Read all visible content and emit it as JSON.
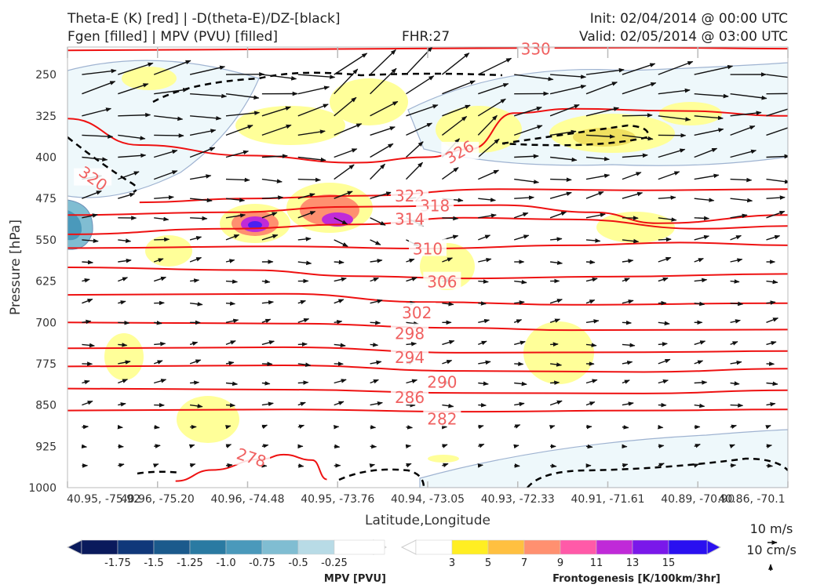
{
  "header": {
    "title_left_1": "Theta-E (K) [red] | -D(theta-E)/DZ-[black]",
    "title_left_2": "Fgen [filled] | MPV (PVU) [filled]",
    "fhr": "FHR:27",
    "init": "Init: 02/04/2014 @ 00:00 UTC",
    "valid": "Valid: 02/05/2014 @ 03:00 UTC"
  },
  "colors": {
    "theta_e": "#ee1111",
    "theta_e_label": "#f06060",
    "mpv_scale": [
      "#0a1a5c",
      "#10387a",
      "#1b5a8c",
      "#2a7aa2",
      "#4a99bb",
      "#80bdd2",
      "#b8dbe6",
      "#ffffff"
    ],
    "fgen_scale": [
      "#ffffff",
      "#ffee22",
      "#ffc040",
      "#ff9070",
      "#ff5aa8",
      "#c02ad8",
      "#7a18ea",
      "#2a10f0"
    ]
  },
  "chart_data": {
    "type": "cross-section",
    "xlabel": "Latitude,Longitude",
    "ylabel": "Pressure [hPa]",
    "x_ticks": [
      "40.95, -75.92",
      "40.96, -75.20",
      "40.96, -74.48",
      "40.95, -73.76",
      "40.94, -73.05",
      "40.93, -72.33",
      "40.91, -71.61",
      "40.89, -70.90",
      "40.86, -70.1"
    ],
    "y_ticks": [
      250,
      325,
      400,
      475,
      550,
      625,
      700,
      775,
      850,
      925,
      1000
    ],
    "ylim": [
      1000,
      200
    ],
    "theta_e_labels": [
      {
        "value": "330",
        "x": 0.65,
        "p": 205
      },
      {
        "value": "326",
        "x": 0.545,
        "p": 392
      },
      {
        "value": "322",
        "x": 0.475,
        "p": 472
      },
      {
        "value": "318",
        "x": 0.51,
        "p": 490
      },
      {
        "value": "314",
        "x": 0.475,
        "p": 514
      },
      {
        "value": "310",
        "x": 0.5,
        "p": 568
      },
      {
        "value": "306",
        "x": 0.52,
        "p": 628
      },
      {
        "value": "302",
        "x": 0.485,
        "p": 684
      },
      {
        "value": "298",
        "x": 0.475,
        "p": 722
      },
      {
        "value": "294",
        "x": 0.475,
        "p": 765
      },
      {
        "value": "290",
        "x": 0.52,
        "p": 810
      },
      {
        "value": "286",
        "x": 0.475,
        "p": 838
      },
      {
        "value": "282",
        "x": 0.52,
        "p": 877
      },
      {
        "value": "278",
        "x": 0.255,
        "p": 947
      },
      {
        "value": "320",
        "x": 0.035,
        "p": 440
      }
    ],
    "theta_e_levels": [
      {
        "value": 330,
        "pts": [
          [
            0,
            206
          ],
          [
            0.3,
            204
          ],
          [
            0.6,
            202
          ],
          [
            0.8,
            201
          ],
          [
            1,
            203
          ]
        ]
      },
      {
        "value": 326,
        "pts": [
          [
            0,
            330
          ],
          [
            0.1,
            378
          ],
          [
            0.25,
            397
          ],
          [
            0.4,
            410
          ],
          [
            0.5,
            400
          ],
          [
            0.56,
            385
          ],
          [
            0.62,
            320
          ],
          [
            0.7,
            312
          ],
          [
            0.85,
            316
          ],
          [
            1,
            325
          ]
        ]
      },
      {
        "value": 322,
        "pts": [
          [
            0.1,
            482
          ],
          [
            0.25,
            475
          ],
          [
            0.4,
            470
          ],
          [
            0.6,
            458
          ],
          [
            0.8,
            460
          ],
          [
            1,
            458
          ]
        ]
      },
      {
        "value": 318,
        "pts": [
          [
            0,
            505
          ],
          [
            0.22,
            500
          ],
          [
            0.4,
            490
          ],
          [
            0.6,
            487
          ],
          [
            0.73,
            500
          ],
          [
            0.82,
            520
          ],
          [
            1,
            505
          ]
        ]
      },
      {
        "value": 314,
        "pts": [
          [
            0,
            540
          ],
          [
            0.22,
            530
          ],
          [
            0.4,
            522
          ],
          [
            0.55,
            510
          ],
          [
            0.7,
            513
          ],
          [
            0.88,
            530
          ],
          [
            1,
            525
          ]
        ]
      },
      {
        "value": 310,
        "pts": [
          [
            0,
            565
          ],
          [
            0.3,
            562
          ],
          [
            0.5,
            566
          ],
          [
            0.7,
            560
          ],
          [
            0.85,
            555
          ],
          [
            1,
            560
          ]
        ]
      },
      {
        "value": 306,
        "pts": [
          [
            0,
            600
          ],
          [
            0.25,
            605
          ],
          [
            0.4,
            616
          ],
          [
            0.55,
            620
          ],
          [
            0.75,
            617
          ],
          [
            1,
            612
          ]
        ]
      },
      {
        "value": 302,
        "pts": [
          [
            0,
            650
          ],
          [
            0.3,
            648
          ],
          [
            0.5,
            663
          ],
          [
            0.7,
            668
          ],
          [
            1,
            665
          ]
        ]
      },
      {
        "value": 298,
        "pts": [
          [
            0,
            700
          ],
          [
            0.3,
            702
          ],
          [
            0.55,
            710
          ],
          [
            0.7,
            714
          ],
          [
            1,
            713
          ]
        ]
      },
      {
        "value": 294,
        "pts": [
          [
            0,
            747
          ],
          [
            0.3,
            745
          ],
          [
            0.55,
            755
          ],
          [
            0.8,
            754
          ],
          [
            1,
            752
          ]
        ]
      },
      {
        "value": 290,
        "pts": [
          [
            0,
            780
          ],
          [
            0.3,
            778
          ],
          [
            0.55,
            788
          ],
          [
            0.8,
            790
          ],
          [
            1,
            784
          ]
        ]
      },
      {
        "value": 286,
        "pts": [
          [
            0,
            820
          ],
          [
            0.3,
            822
          ],
          [
            0.55,
            828
          ],
          [
            0.8,
            829
          ],
          [
            1,
            823
          ]
        ]
      },
      {
        "value": 282,
        "pts": [
          [
            0,
            860
          ],
          [
            0.3,
            858
          ],
          [
            0.55,
            862
          ],
          [
            0.8,
            860
          ],
          [
            1,
            858
          ]
        ]
      },
      {
        "value": 278,
        "pts": [
          [
            0.15,
            988
          ],
          [
            0.2,
            968
          ],
          [
            0.27,
            948
          ],
          [
            0.3,
            940
          ],
          [
            0.34,
            950
          ],
          [
            0.36,
            985
          ]
        ]
      }
    ],
    "mpv_colorbar": {
      "title": "MPV [PVU]",
      "ticks": [
        "-1.75",
        "-1.5",
        "-1.25",
        "-1.0",
        "-0.75",
        "-0.5",
        "-0.25"
      ]
    },
    "fgen_colorbar": {
      "title": "Frontogenesis [K/100km/3hr]",
      "ticks": [
        "3",
        "5",
        "7",
        "9",
        "11",
        "13",
        "15"
      ]
    },
    "vector_keys": [
      "10 m/s",
      "10 cm/s"
    ]
  }
}
